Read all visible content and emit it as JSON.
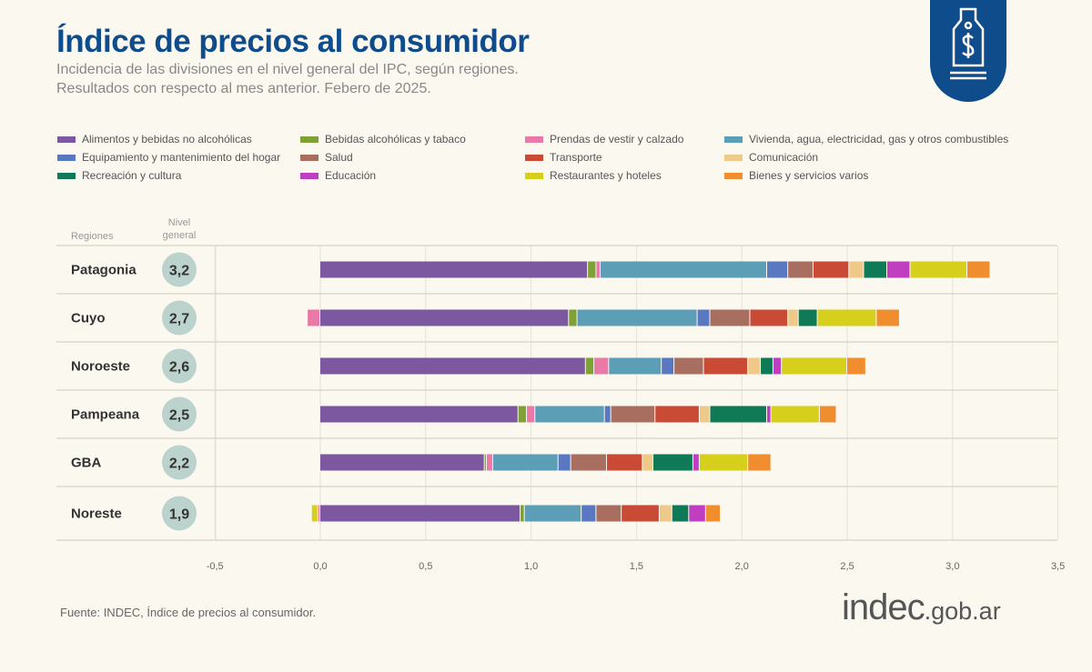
{
  "header": {
    "title": "Índice de precios al consumidor",
    "subtitle_1": "Incidencia de las divisiones en el nivel general del IPC, según regiones.",
    "subtitle_2": "Resultados con respecto al mes anterior. Febero de 2025.",
    "badge_icon": "price-tag-dollar-icon"
  },
  "footer": {
    "source": "Fuente: INDEC, Índice de precios al consumidor.",
    "logo_main": "indec",
    "logo_suffix": ".gob.ar"
  },
  "chart_data": {
    "type": "bar",
    "orientation": "horizontal",
    "stacked": true,
    "column_headers": {
      "regions": "Regiones",
      "level_1": "Nivel",
      "level_2": "general"
    },
    "xlim": [
      -0.5,
      3.5
    ],
    "xticks": [
      "-0,5",
      "0,0",
      "0,5",
      "1,0",
      "1,5",
      "2,0",
      "2,5",
      "3,0",
      "3,5"
    ],
    "xtick_values": [
      -0.5,
      0,
      0.5,
      1,
      1.5,
      2,
      2.5,
      3,
      3.5
    ],
    "grid": true,
    "legend_placement": "top",
    "categories": [
      "Patagonia",
      "Cuyo",
      "Noroeste",
      "Pampeana",
      "GBA",
      "Noreste"
    ],
    "nivel_general": [
      "3,2",
      "2,7",
      "2,6",
      "2,5",
      "2,2",
      "1,9"
    ],
    "series": [
      {
        "name": "Alimentos y bebidas no alcohólicas",
        "color": "#7b58a0",
        "values": [
          1.27,
          1.18,
          1.26,
          0.94,
          0.78,
          0.95
        ]
      },
      {
        "name": "Bebidas alcohólicas y tabaco",
        "color": "#7fa035",
        "values": [
          0.04,
          0.04,
          0.04,
          0.04,
          0.01,
          0.02
        ]
      },
      {
        "name": "Prendas de vestir y calzado",
        "color": "#e97aa8",
        "values": [
          0.02,
          -0.06,
          0.07,
          0.04,
          0.03,
          -0.01
        ]
      },
      {
        "name": "Vivienda, agua, electricidad, gas y otros combustibles",
        "color": "#5b9eb6",
        "values": [
          0.79,
          0.57,
          0.25,
          0.33,
          0.31,
          0.27
        ]
      },
      {
        "name": "Equipamiento y mantenimiento del hogar",
        "color": "#5a78c2",
        "values": [
          0.1,
          0.06,
          0.06,
          0.03,
          0.06,
          0.07
        ]
      },
      {
        "name": "Salud",
        "color": "#a86e60",
        "values": [
          0.12,
          0.19,
          0.14,
          0.21,
          0.17,
          0.12
        ]
      },
      {
        "name": "Transporte",
        "color": "#c94a35",
        "values": [
          0.17,
          0.18,
          0.21,
          0.21,
          0.17,
          0.18
        ]
      },
      {
        "name": "Comunicación",
        "color": "#eec98a",
        "values": [
          0.07,
          0.05,
          0.06,
          0.05,
          0.05,
          0.06
        ]
      },
      {
        "name": "Recreación y cultura",
        "color": "#0f7a55",
        "values": [
          0.11,
          0.09,
          0.06,
          0.27,
          0.19,
          0.08
        ]
      },
      {
        "name": "Educación",
        "color": "#c03fc0",
        "values": [
          0.11,
          0.0,
          0.04,
          0.02,
          0.03,
          0.08
        ]
      },
      {
        "name": "Restaurantes y hoteles",
        "color": "#d6cf1c",
        "values": [
          0.27,
          0.28,
          0.31,
          0.23,
          0.23,
          -0.03
        ]
      },
      {
        "name": "Bienes y servicios varios",
        "color": "#ef8d2f",
        "values": [
          0.11,
          0.11,
          0.09,
          0.08,
          0.11,
          0.07
        ]
      }
    ]
  }
}
